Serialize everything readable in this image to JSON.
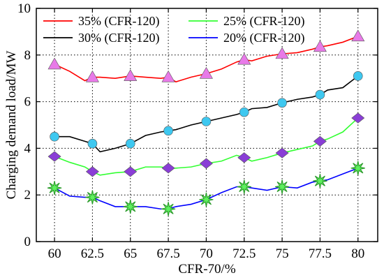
{
  "chart_data": {
    "type": "line",
    "title": "",
    "xlabel": "CFR-70/%",
    "ylabel": "Charging demand load/MW",
    "xlim": [
      58.8,
      81.3
    ],
    "ylim": [
      0,
      10
    ],
    "x_ticks": [
      "60",
      "62.5",
      "65",
      "67.5",
      "70",
      "72.5",
      "75",
      "77.5",
      "80"
    ],
    "y_ticks": [
      "0",
      "2",
      "4",
      "6",
      "8",
      "10"
    ],
    "grid": true,
    "legend_position": "top",
    "series": [
      {
        "name": "35% (CFR-120)",
        "color": "#ff0000",
        "marker": "triangle",
        "marker_color": "#e87ae8",
        "x": [
          60,
          61,
          62,
          62.5,
          63,
          64,
          65,
          66,
          67,
          67.5,
          68,
          69,
          70,
          71,
          72,
          72.5,
          73,
          74,
          75,
          76,
          77,
          77.5,
          78,
          79,
          80
        ],
        "y": [
          7.6,
          7.3,
          6.9,
          7.05,
          7.05,
          7.0,
          7.1,
          7.05,
          7.0,
          7.05,
          6.85,
          7.05,
          7.2,
          7.4,
          7.7,
          7.8,
          7.75,
          7.95,
          8.05,
          8.1,
          8.25,
          8.35,
          8.4,
          8.55,
          8.8
        ],
        "marker_x": [
          60,
          62.5,
          65,
          67.5,
          70,
          72.5,
          75,
          77.5,
          80
        ],
        "marker_y": [
          7.6,
          7.05,
          7.1,
          7.05,
          7.2,
          7.8,
          8.05,
          8.35,
          8.8
        ]
      },
      {
        "name": "30% (CFR-120)",
        "color": "#000000",
        "marker": "circle",
        "marker_color": "#3ec8f0",
        "x": [
          60,
          61,
          62,
          62.5,
          63,
          64,
          65,
          66,
          67,
          67.5,
          68,
          69,
          70,
          71,
          72,
          72.5,
          73,
          74,
          75,
          76,
          77,
          77.5,
          78,
          79,
          80
        ],
        "y": [
          4.5,
          4.5,
          4.3,
          4.2,
          3.85,
          4.0,
          4.2,
          4.55,
          4.7,
          4.75,
          4.8,
          5.0,
          5.15,
          5.3,
          5.45,
          5.55,
          5.7,
          5.75,
          5.95,
          6.1,
          6.2,
          6.3,
          6.5,
          6.6,
          7.1
        ],
        "marker_x": [
          60,
          62.5,
          65,
          67.5,
          70,
          72.5,
          75,
          77.5,
          80
        ],
        "marker_y": [
          4.5,
          4.2,
          4.2,
          4.75,
          5.15,
          5.55,
          5.95,
          6.3,
          7.1
        ]
      },
      {
        "name": "25% (CFR-120)",
        "color": "#32ff32",
        "marker": "diamond",
        "marker_color": "#8a3ed6",
        "x": [
          60,
          61,
          62,
          62.5,
          63,
          64,
          65,
          66,
          67,
          67.5,
          68,
          69,
          70,
          71,
          72,
          72.5,
          73,
          74,
          75,
          76,
          77,
          77.5,
          78,
          79,
          80
        ],
        "y": [
          3.65,
          3.4,
          3.2,
          3.0,
          2.85,
          2.95,
          3.0,
          3.2,
          3.2,
          3.15,
          3.15,
          3.2,
          3.35,
          3.45,
          3.7,
          3.6,
          3.45,
          3.6,
          3.8,
          3.95,
          4.1,
          4.3,
          4.4,
          4.7,
          5.3
        ],
        "marker_x": [
          60,
          62.5,
          65,
          67.5,
          70,
          72.5,
          75,
          77.5,
          80
        ],
        "marker_y": [
          3.65,
          3.0,
          3.0,
          3.15,
          3.35,
          3.6,
          3.8,
          4.3,
          5.3
        ]
      },
      {
        "name": "20% (CFR-120)",
        "color": "#0000ff",
        "marker": "star",
        "marker_color": "#2a9a2a",
        "x": [
          60,
          61,
          62,
          62.5,
          63,
          64,
          65,
          66,
          67,
          67.5,
          68,
          69,
          70,
          71,
          72,
          72.5,
          73,
          74,
          75,
          76,
          77,
          77.5,
          78,
          79,
          80
        ],
        "y": [
          2.3,
          1.95,
          1.9,
          1.9,
          1.75,
          1.5,
          1.5,
          1.5,
          1.4,
          1.4,
          1.5,
          1.6,
          1.8,
          2.1,
          2.35,
          2.35,
          2.3,
          2.2,
          2.35,
          2.3,
          2.55,
          2.6,
          2.65,
          2.9,
          3.15
        ],
        "marker_x": [
          60,
          62.5,
          65,
          67.5,
          70,
          72.5,
          75,
          77.5,
          80
        ],
        "marker_y": [
          2.3,
          1.9,
          1.5,
          1.4,
          1.8,
          2.35,
          2.35,
          2.6,
          3.15
        ]
      }
    ]
  }
}
